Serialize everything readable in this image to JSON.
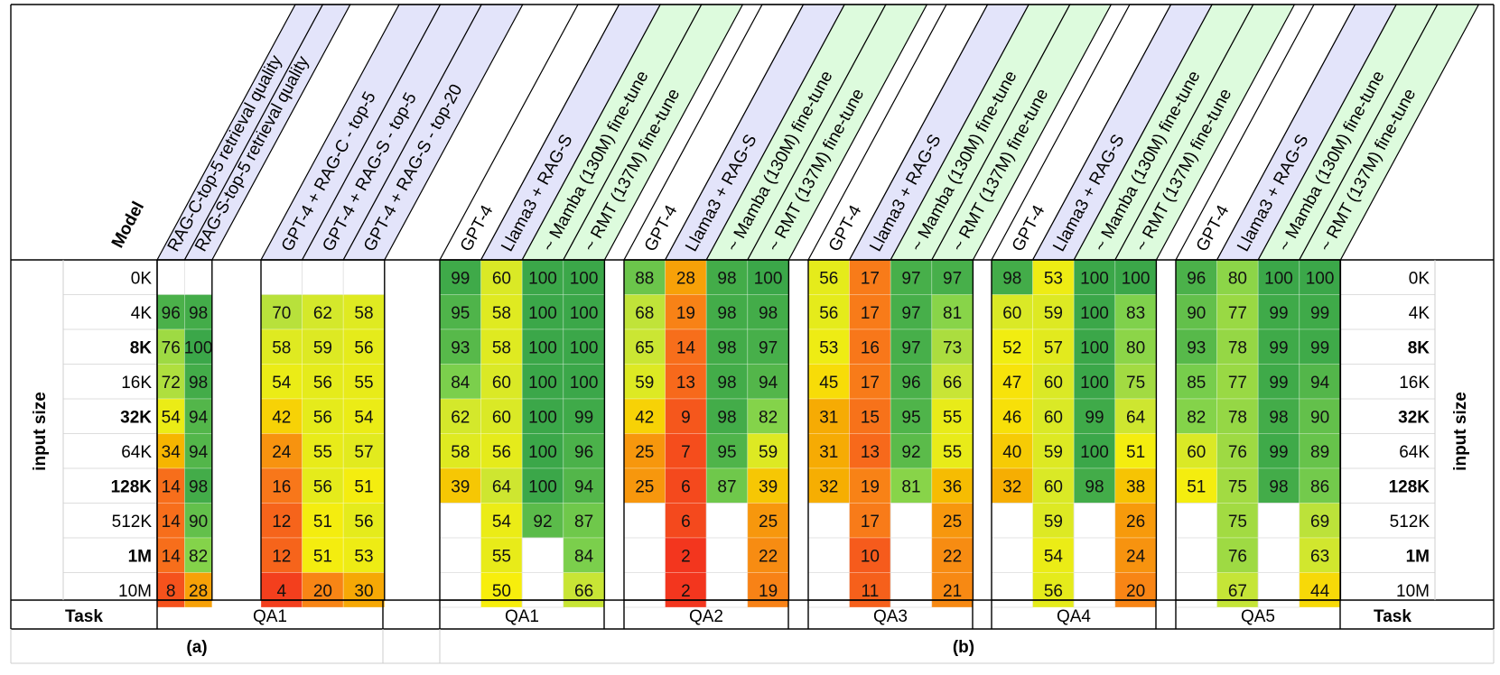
{
  "labels": {
    "model": "Model",
    "task": "Task",
    "input_size": "input size",
    "panel_a": "(a)",
    "panel_b": "(b)"
  },
  "row_labels": [
    "0K",
    "4K",
    "8K",
    "16K",
    "32K",
    "64K",
    "128K",
    "512K",
    "1M",
    "10M"
  ],
  "bold_rows": [
    "8K",
    "32K",
    "128K",
    "1M"
  ],
  "colors": {
    "blue_header": "#e3e4fa",
    "green_header": "#ddfbdd",
    "scale": [
      "#f22d1e",
      "#f87a1a",
      "#f6b300",
      "#f7ee0c",
      "#c6e537",
      "#7ed14c",
      "#3ba749"
    ]
  },
  "chart_data": {
    "type": "heatmap",
    "groups": [
      {
        "task": "QA1",
        "columns": [
          {
            "label": "RAG-C-top-5 retrieval quality",
            "header": "blue",
            "values": [
              null,
              96,
              76,
              72,
              54,
              34,
              14,
              14,
              14,
              8
            ]
          },
          {
            "label": "RAG-S-top-5 retrieval quality",
            "header": "blue",
            "values": [
              null,
              98,
              100,
              98,
              94,
              94,
              98,
              90,
              82,
              28
            ]
          }
        ]
      },
      {
        "task": "",
        "columns": [
          {
            "label": "GPT-4 + RAG-C - top-5",
            "header": "blue",
            "values": [
              null,
              70,
              58,
              54,
              42,
              24,
              16,
              12,
              12,
              4
            ]
          },
          {
            "label": "GPT-4 + RAG-S - top-5",
            "header": "blue",
            "values": [
              null,
              62,
              59,
              56,
              56,
              55,
              56,
              51,
              51,
              20
            ]
          },
          {
            "label": "GPT-4 + RAG-S - top-20",
            "header": "blue",
            "values": [
              null,
              58,
              56,
              55,
              54,
              57,
              51,
              56,
              53,
              30
            ]
          }
        ]
      },
      {
        "task": "QA1",
        "columns": [
          {
            "label": "GPT-4",
            "header": "white",
            "values": [
              99,
              95,
              93,
              84,
              62,
              58,
              39,
              null,
              null,
              null
            ]
          },
          {
            "label": "Llama3 + RAG-S",
            "header": "blue",
            "values": [
              60,
              58,
              58,
              60,
              60,
              56,
              64,
              54,
              55,
              50
            ]
          },
          {
            "label": "~ Mamba (130M) fine-tune",
            "header": "green",
            "values": [
              100,
              100,
              100,
              100,
              100,
              100,
              100,
              92,
              null,
              null
            ]
          },
          {
            "label": "~ RMT (137M) fine-tune",
            "header": "green",
            "values": [
              100,
              100,
              100,
              100,
              99,
              96,
              94,
              87,
              84,
              66
            ]
          }
        ]
      },
      {
        "task": "QA2",
        "columns": [
          {
            "label": "GPT-4",
            "header": "white",
            "values": [
              88,
              68,
              65,
              59,
              42,
              25,
              25,
              null,
              null,
              null
            ]
          },
          {
            "label": "Llama3 + RAG-S",
            "header": "blue",
            "values": [
              28,
              19,
              14,
              13,
              9,
              7,
              6,
              6,
              2,
              2
            ]
          },
          {
            "label": "~ Mamba (130M) fine-tune",
            "header": "green",
            "values": [
              98,
              98,
              98,
              98,
              98,
              95,
              87,
              null,
              null,
              null
            ]
          },
          {
            "label": "~ RMT (137M) fine-tune",
            "header": "green",
            "values": [
              100,
              98,
              97,
              94,
              82,
              59,
              39,
              25,
              22,
              19
            ]
          }
        ]
      },
      {
        "task": "QA3",
        "columns": [
          {
            "label": "GPT-4",
            "header": "white",
            "values": [
              56,
              56,
              53,
              45,
              31,
              31,
              32,
              null,
              null,
              null
            ]
          },
          {
            "label": "Llama3 + RAG-S",
            "header": "blue",
            "values": [
              17,
              17,
              16,
              17,
              15,
              13,
              19,
              17,
              10,
              11
            ]
          },
          {
            "label": "~ Mamba (130M) fine-tune",
            "header": "green",
            "values": [
              97,
              97,
              97,
              96,
              95,
              92,
              81,
              null,
              null,
              null
            ]
          },
          {
            "label": "~ RMT (137M) fine-tune",
            "header": "green",
            "values": [
              97,
              81,
              73,
              66,
              55,
              55,
              36,
              25,
              22,
              21
            ]
          }
        ]
      },
      {
        "task": "QA4",
        "columns": [
          {
            "label": "GPT-4",
            "header": "white",
            "values": [
              98,
              60,
              52,
              47,
              46,
              40,
              32,
              null,
              null,
              null
            ]
          },
          {
            "label": "Llama3 + RAG-S",
            "header": "blue",
            "values": [
              53,
              59,
              57,
              60,
              60,
              59,
              60,
              59,
              54,
              56
            ]
          },
          {
            "label": "~ Mamba (130M) fine-tune",
            "header": "green",
            "values": [
              100,
              100,
              100,
              100,
              99,
              100,
              98,
              null,
              null,
              null
            ]
          },
          {
            "label": "~ RMT (137M) fine-tune",
            "header": "green",
            "values": [
              100,
              83,
              80,
              75,
              64,
              51,
              38,
              26,
              24,
              20
            ]
          }
        ]
      },
      {
        "task": "QA5",
        "columns": [
          {
            "label": "GPT-4",
            "header": "white",
            "values": [
              96,
              90,
              93,
              85,
              82,
              60,
              51,
              null,
              null,
              null
            ]
          },
          {
            "label": "Llama3 + RAG-S",
            "header": "blue",
            "values": [
              80,
              77,
              78,
              77,
              78,
              76,
              75,
              75,
              76,
              67
            ]
          },
          {
            "label": "~ Mamba (130M) fine-tune",
            "header": "green",
            "values": [
              100,
              99,
              99,
              99,
              98,
              99,
              98,
              null,
              null,
              null
            ]
          },
          {
            "label": "~ RMT (137M) fine-tune",
            "header": "green",
            "values": [
              100,
              99,
              99,
              94,
              90,
              89,
              86,
              69,
              63,
              44
            ]
          }
        ]
      }
    ]
  }
}
